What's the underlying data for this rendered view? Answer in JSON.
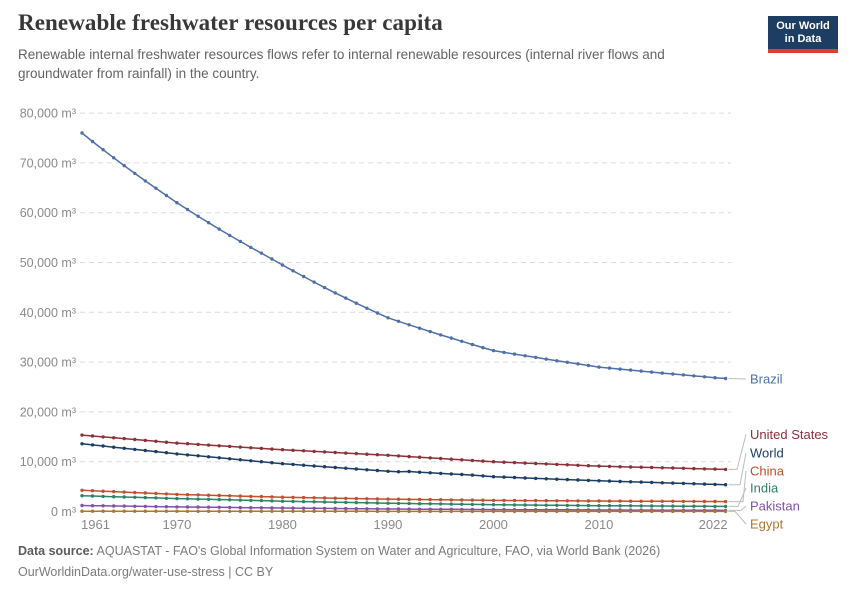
{
  "header": {
    "title": "Renewable freshwater resources per capita",
    "subtitle": "Renewable internal freshwater resources flows refer to internal renewable resources (internal river flows and groundwater from rainfall) in the country.",
    "logo": {
      "line1": "Our World",
      "line2": "in Data",
      "bg": "#1d3d63",
      "accent": "#dc3e32"
    }
  },
  "footer": {
    "source_label": "Data source:",
    "source_text": " AQUASTAT - FAO's Global Information System on Water and Agriculture, FAO, via World Bank (2026)",
    "note": "OurWorldinData.org/water-use-stress | CC BY"
  },
  "colors": {
    "grid": "#dcdcdc",
    "axis_text": "#8a8a8a",
    "connector": "#bdbdbd"
  },
  "chart_data": {
    "type": "line",
    "title": "Renewable freshwater resources per capita",
    "unit": "m³",
    "xlabel": "",
    "ylabel": "",
    "ylim": [
      0,
      80000
    ],
    "grid": "horizontal-dashed",
    "legend_position": "right-edge-labels",
    "x_ticks": [
      1961,
      1970,
      1980,
      1990,
      2000,
      2010,
      2022
    ],
    "y_ticks": [
      0,
      10000,
      20000,
      30000,
      40000,
      50000,
      60000,
      70000,
      80000
    ],
    "years": [
      1961,
      1962,
      1963,
      1964,
      1965,
      1966,
      1967,
      1968,
      1969,
      1970,
      1971,
      1972,
      1973,
      1974,
      1975,
      1976,
      1977,
      1978,
      1979,
      1980,
      1981,
      1982,
      1983,
      1984,
      1985,
      1986,
      1987,
      1988,
      1989,
      1990,
      1991,
      1992,
      1993,
      1994,
      1995,
      1996,
      1997,
      1998,
      1999,
      2000,
      2001,
      2002,
      2003,
      2004,
      2005,
      2006,
      2007,
      2008,
      2009,
      2010,
      2011,
      2012,
      2013,
      2014,
      2015,
      2016,
      2017,
      2018,
      2019,
      2020,
      2021,
      2022
    ],
    "series": [
      {
        "name": "Brazil",
        "color": "#4e6fa8",
        "values": [
          76000,
          74300,
          72650,
          71030,
          69450,
          67900,
          66390,
          64910,
          63460,
          62000,
          60640,
          59300,
          57990,
          56710,
          55450,
          54230,
          53030,
          51860,
          50710,
          49500,
          48330,
          47180,
          46060,
          44960,
          43890,
          42850,
          41830,
          40830,
          39860,
          38900,
          38190,
          37490,
          36800,
          36130,
          35460,
          34810,
          34170,
          33540,
          32920,
          32300,
          31950,
          31610,
          31270,
          30940,
          30600,
          30270,
          29950,
          29630,
          29310,
          29000,
          28800,
          28600,
          28400,
          28200,
          28000,
          27800,
          27610,
          27420,
          27230,
          27040,
          26870,
          26700
        ]
      },
      {
        "name": "United States",
        "color": "#8c3039",
        "values": [
          15340,
          15160,
          14980,
          14800,
          14630,
          14450,
          14270,
          14090,
          13920,
          13740,
          13610,
          13470,
          13340,
          13200,
          13070,
          12940,
          12800,
          12670,
          12530,
          12400,
          12290,
          12180,
          12070,
          11960,
          11850,
          11730,
          11620,
          11510,
          11400,
          11290,
          11160,
          11030,
          10900,
          10770,
          10640,
          10510,
          10380,
          10250,
          10120,
          9990,
          9900,
          9810,
          9720,
          9630,
          9550,
          9460,
          9370,
          9280,
          9190,
          9110,
          9050,
          9000,
          8940,
          8890,
          8840,
          8780,
          8730,
          8670,
          8620,
          8560,
          8510,
          8450
        ]
      },
      {
        "name": "World",
        "color": "#1d3d63",
        "values": [
          13600,
          13370,
          13150,
          12920,
          12700,
          12470,
          12250,
          12020,
          11800,
          11570,
          11370,
          11180,
          10980,
          10780,
          10590,
          10390,
          10190,
          9990,
          9800,
          9600,
          9450,
          9300,
          9140,
          8990,
          8840,
          8690,
          8540,
          8380,
          8230,
          8080,
          7990,
          8040,
          7900,
          7780,
          7660,
          7540,
          7430,
          7310,
          7150,
          6980,
          6900,
          6820,
          6730,
          6650,
          6570,
          6490,
          6410,
          6320,
          6240,
          6160,
          6100,
          6030,
          5970,
          5900,
          5840,
          5770,
          5710,
          5640,
          5580,
          5510,
          5450,
          5380
        ]
      },
      {
        "name": "China",
        "color": "#c0502e",
        "values": [
          4260,
          4170,
          4080,
          3990,
          3890,
          3800,
          3710,
          3620,
          3530,
          3440,
          3380,
          3330,
          3270,
          3210,
          3160,
          3100,
          3040,
          2990,
          2930,
          2870,
          2830,
          2790,
          2750,
          2710,
          2680,
          2640,
          2600,
          2560,
          2520,
          2480,
          2460,
          2430,
          2410,
          2380,
          2360,
          2330,
          2310,
          2280,
          2260,
          2230,
          2220,
          2210,
          2190,
          2180,
          2170,
          2150,
          2140,
          2130,
          2110,
          2100,
          2090,
          2080,
          2070,
          2060,
          2060,
          2050,
          2040,
          2030,
          2020,
          2010,
          2000,
          1990
        ]
      },
      {
        "name": "India",
        "color": "#2c8465",
        "values": [
          3170,
          3110,
          3040,
          2980,
          2920,
          2850,
          2790,
          2730,
          2660,
          2600,
          2550,
          2490,
          2440,
          2390,
          2340,
          2280,
          2230,
          2180,
          2120,
          2070,
          2030,
          1990,
          1950,
          1910,
          1870,
          1820,
          1780,
          1740,
          1700,
          1660,
          1630,
          1600,
          1570,
          1540,
          1520,
          1490,
          1460,
          1430,
          1400,
          1370,
          1350,
          1330,
          1310,
          1290,
          1270,
          1250,
          1230,
          1210,
          1190,
          1170,
          1160,
          1150,
          1140,
          1120,
          1110,
          1100,
          1080,
          1070,
          1060,
          1040,
          1030,
          1020
        ]
      },
      {
        "name": "Pakistan",
        "color": "#8152a8",
        "values": [
          1200,
          1170,
          1140,
          1110,
          1080,
          1050,
          1020,
          990,
          960,
          930,
          910,
          880,
          860,
          840,
          820,
          790,
          770,
          750,
          720,
          700,
          680,
          660,
          640,
          620,
          610,
          590,
          570,
          550,
          530,
          510,
          500,
          490,
          470,
          460,
          450,
          440,
          420,
          410,
          400,
          390,
          380,
          370,
          370,
          360,
          350,
          340,
          340,
          330,
          320,
          310,
          300,
          300,
          290,
          280,
          280,
          270,
          260,
          260,
          250,
          240,
          240,
          230
        ]
      },
      {
        "name": "Egypt",
        "color": "#b0762d",
        "values": [
          65,
          63,
          62,
          60,
          58,
          57,
          55,
          54,
          52,
          51,
          50,
          48,
          47,
          46,
          45,
          43,
          42,
          41,
          40,
          39,
          38,
          37,
          36,
          35,
          34,
          33,
          32,
          31,
          30,
          30,
          29,
          28,
          28,
          27,
          26,
          26,
          25,
          25,
          24,
          24,
          23,
          23,
          22,
          22,
          21,
          21,
          20,
          20,
          19,
          19,
          19,
          18,
          18,
          18,
          17,
          17,
          17,
          16,
          16,
          16,
          16,
          16
        ]
      }
    ]
  }
}
